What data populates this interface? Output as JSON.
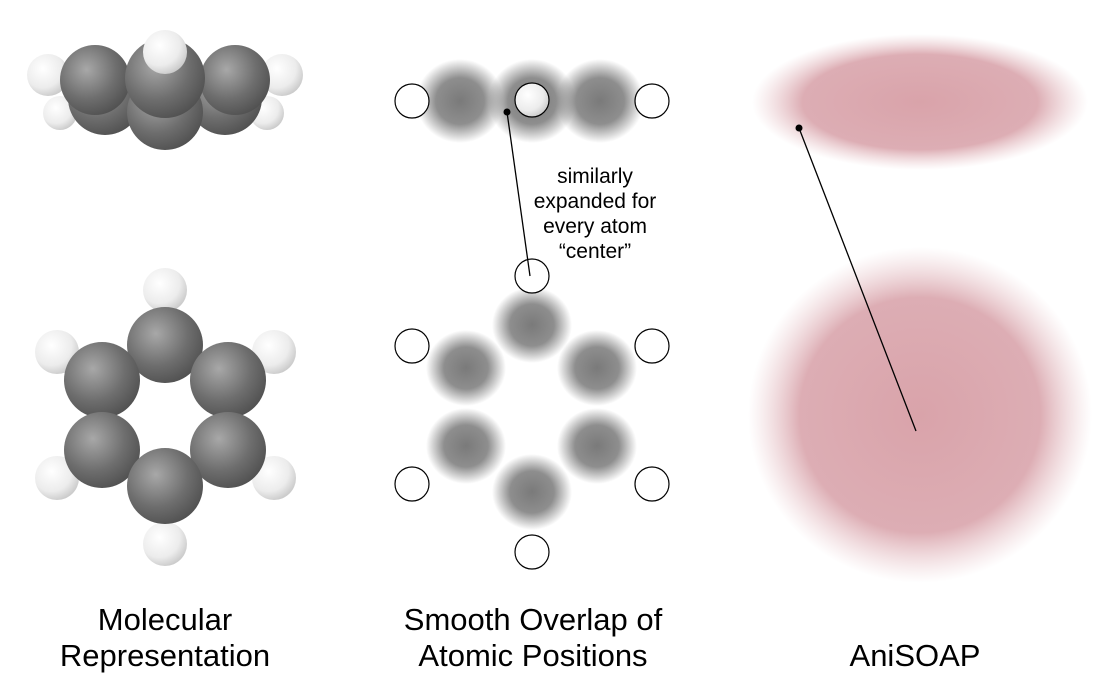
{
  "captions": {
    "molecular": [
      "Molecular",
      "Representation"
    ],
    "soap": [
      "Smooth Overlap of",
      "Atomic Positions"
    ],
    "anisoap": "AniSOAP"
  },
  "annotation": [
    "similarly",
    "expanded for",
    "every atom",
    "“center”"
  ],
  "colors": {
    "carbon": "#6e6e6e",
    "hydrogen": "#f2f2f2",
    "density": "#7a7a7a",
    "anisoap": "#d9a3aa",
    "line": "#000000"
  }
}
